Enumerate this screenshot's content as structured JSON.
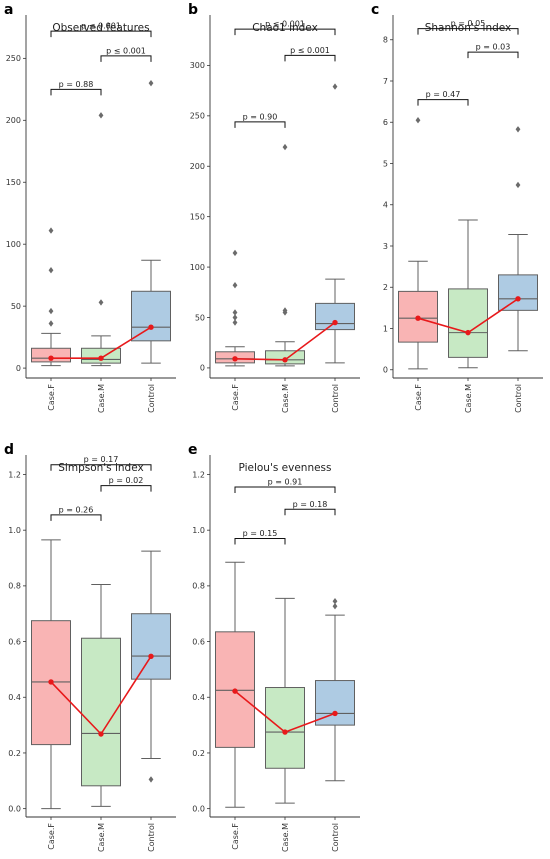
{
  "chart_data": [
    {
      "panel": "a",
      "type": "box",
      "title": "Observed features",
      "categories": [
        "Case.F",
        "Case.M",
        "Control"
      ],
      "colors": [
        "#f9b4b4",
        "#c7e9c4",
        "#aecbe3"
      ],
      "ylim": [
        -8,
        285
      ],
      "yticks": [
        0,
        50,
        100,
        150,
        200,
        250
      ],
      "boxes": [
        {
          "whisker_low": 2,
          "q1": 5,
          "median": 8,
          "q3": 16,
          "whisker_high": 28,
          "outliers": [
            36,
            46,
            79,
            111
          ]
        },
        {
          "whisker_low": 2,
          "q1": 4,
          "median": 7,
          "q3": 16,
          "whisker_high": 26,
          "outliers": [
            53,
            204
          ]
        },
        {
          "whisker_low": 4,
          "q1": 22,
          "median": 33,
          "q3": 62,
          "whisker_high": 87,
          "outliers": [
            230
          ]
        }
      ],
      "means": [
        8,
        8,
        33
      ],
      "comparisons": [
        {
          "from": 0,
          "to": 1,
          "y": 225,
          "label": "p = 0.88"
        },
        {
          "from": 1,
          "to": 2,
          "y": 252,
          "label": "p ≤ 0.001"
        },
        {
          "from": 0,
          "to": 2,
          "y": 272,
          "label": "p ≤ 0.001"
        }
      ]
    },
    {
      "panel": "b",
      "type": "box",
      "title": "Chao1 index",
      "categories": [
        "Case.F",
        "Case.M",
        "Control"
      ],
      "colors": [
        "#f9b4b4",
        "#c7e9c4",
        "#aecbe3"
      ],
      "ylim": [
        -10,
        350
      ],
      "yticks": [
        0,
        50,
        100,
        150,
        200,
        250,
        300
      ],
      "boxes": [
        {
          "whisker_low": 2,
          "q1": 5,
          "median": 9,
          "q3": 16,
          "whisker_high": 21,
          "outliers": [
            45,
            50,
            55,
            82,
            114
          ]
        },
        {
          "whisker_low": 2,
          "q1": 4,
          "median": 8,
          "q3": 17,
          "whisker_high": 26,
          "outliers": [
            55,
            57,
            219
          ]
        },
        {
          "whisker_low": 5,
          "q1": 38,
          "median": 44,
          "q3": 64,
          "whisker_high": 88,
          "outliers": [
            279
          ]
        }
      ],
      "means": [
        9,
        8,
        45
      ],
      "comparisons": [
        {
          "from": 0,
          "to": 1,
          "y": 244,
          "label": "p = 0.90"
        },
        {
          "from": 1,
          "to": 2,
          "y": 310,
          "label": "p ≤ 0.001"
        },
        {
          "from": 0,
          "to": 2,
          "y": 336,
          "label": "p ≤ 0.001"
        }
      ]
    },
    {
      "panel": "c",
      "type": "box",
      "title": "Shannon's index",
      "categories": [
        "Case.F",
        "Case.M",
        "Control"
      ],
      "colors": [
        "#f9b4b4",
        "#c7e9c4",
        "#aecbe3"
      ],
      "ylim": [
        -0.2,
        8.6
      ],
      "yticks": [
        0,
        1,
        2,
        3,
        4,
        5,
        6,
        7,
        8
      ],
      "boxes": [
        {
          "whisker_low": 0.02,
          "q1": 0.67,
          "median": 1.25,
          "q3": 1.9,
          "whisker_high": 2.63,
          "outliers": [
            6.05
          ]
        },
        {
          "whisker_low": 0.05,
          "q1": 0.3,
          "median": 0.9,
          "q3": 1.96,
          "whisker_high": 3.63,
          "outliers": []
        },
        {
          "whisker_low": 0.46,
          "q1": 1.44,
          "median": 1.72,
          "q3": 2.3,
          "whisker_high": 3.28,
          "outliers": [
            4.48,
            5.83
          ]
        }
      ],
      "means": [
        1.25,
        0.9,
        1.72
      ],
      "comparisons": [
        {
          "from": 0,
          "to": 1,
          "y": 6.55,
          "label": "p = 0.47"
        },
        {
          "from": 1,
          "to": 2,
          "y": 7.7,
          "label": "p = 0.03"
        },
        {
          "from": 0,
          "to": 2,
          "y": 8.27,
          "label": "p = 0.05"
        }
      ]
    },
    {
      "panel": "d",
      "type": "box",
      "title": "Simpson's index",
      "categories": [
        "Case.F",
        "Case.M",
        "Control"
      ],
      "colors": [
        "#f9b4b4",
        "#c7e9c4",
        "#aecbe3"
      ],
      "ylim": [
        -0.03,
        1.27
      ],
      "yticks": [
        "0.0",
        "0.2",
        "0.4",
        "0.6",
        "0.8",
        "1.0",
        "1.2"
      ],
      "boxes": [
        {
          "whisker_low": 0.0,
          "q1": 0.23,
          "median": 0.455,
          "q3": 0.675,
          "whisker_high": 0.965,
          "outliers": []
        },
        {
          "whisker_low": 0.008,
          "q1": 0.082,
          "median": 0.27,
          "q3": 0.612,
          "whisker_high": 0.805,
          "outliers": []
        },
        {
          "whisker_low": 0.18,
          "q1": 0.465,
          "median": 0.548,
          "q3": 0.7,
          "whisker_high": 0.925,
          "outliers": [
            0.105
          ]
        }
      ],
      "means": [
        0.455,
        0.268,
        0.547
      ],
      "comparisons": [
        {
          "from": 0,
          "to": 1,
          "y": 1.055,
          "label": "p = 0.26"
        },
        {
          "from": 1,
          "to": 2,
          "y": 1.16,
          "label": "p = 0.02"
        },
        {
          "from": 0,
          "to": 2,
          "y": 1.235,
          "label": "p = 0.17"
        }
      ]
    },
    {
      "panel": "e",
      "type": "box",
      "title": "Pielou's evenness",
      "categories": [
        "Case.F",
        "Case.M",
        "Control"
      ],
      "colors": [
        "#f9b4b4",
        "#c7e9c4",
        "#aecbe3"
      ],
      "ylim": [
        -0.03,
        1.27
      ],
      "yticks": [
        "0.0",
        "0.2",
        "0.4",
        "0.6",
        "0.8",
        "1.0",
        "1.2"
      ],
      "boxes": [
        {
          "whisker_low": 0.005,
          "q1": 0.22,
          "median": 0.425,
          "q3": 0.635,
          "whisker_high": 0.885,
          "outliers": []
        },
        {
          "whisker_low": 0.02,
          "q1": 0.145,
          "median": 0.275,
          "q3": 0.435,
          "whisker_high": 0.755,
          "outliers": []
        },
        {
          "whisker_low": 0.1,
          "q1": 0.3,
          "median": 0.342,
          "q3": 0.46,
          "whisker_high": 0.695,
          "outliers": [
            0.727,
            0.745
          ]
        }
      ],
      "means": [
        0.422,
        0.275,
        0.342
      ],
      "comparisons": [
        {
          "from": 0,
          "to": 1,
          "y": 0.97,
          "label": "p = 0.15"
        },
        {
          "from": 1,
          "to": 2,
          "y": 1.075,
          "label": "p = 0.18"
        },
        {
          "from": 0,
          "to": 2,
          "y": 1.155,
          "label": "p = 0.91"
        }
      ]
    }
  ]
}
